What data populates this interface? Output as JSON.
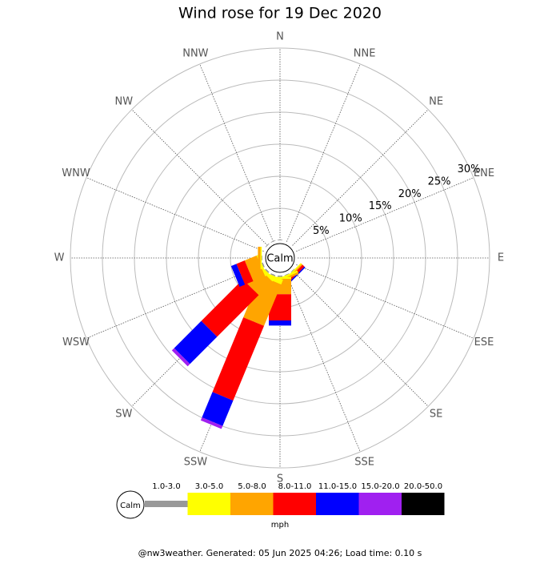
{
  "chart_data": {
    "type": "windrose",
    "title": "Wind rose for 19 Dec 2020",
    "categories": [
      "N",
      "NNE",
      "NE",
      "ENE",
      "E",
      "ESE",
      "SE",
      "SSE",
      "S",
      "SSW",
      "SW",
      "WSW",
      "W",
      "WNW",
      "NW",
      "NNW"
    ],
    "calm_label": "Calm",
    "rlim": [
      0,
      30
    ],
    "rticks": [
      {
        "value": 5,
        "label": "5%"
      },
      {
        "value": 10,
        "label": "10%"
      },
      {
        "value": 15,
        "label": "15%"
      },
      {
        "value": 20,
        "label": "20%"
      },
      {
        "value": 25,
        "label": "25%"
      },
      {
        "value": 30,
        "label": "30%"
      }
    ],
    "series": [
      {
        "name": "1.0-3.0",
        "color": "#999999",
        "values": [
          0.1,
          0,
          0,
          0,
          0,
          0,
          0.1,
          0.1,
          0.2,
          0.2,
          0.2,
          0.2,
          0.1,
          0,
          0.1,
          0.1
        ]
      },
      {
        "name": "3.0-5.0",
        "color": "#ffff00",
        "values": [
          0,
          0,
          0,
          0,
          0,
          0,
          0.2,
          0.3,
          0.3,
          0.8,
          0.5,
          0.3,
          0.2,
          0,
          0,
          0
        ]
      },
      {
        "name": "5.0-8.0",
        "color": "#ffa500",
        "values": [
          0,
          0,
          0,
          0,
          0,
          0,
          0.2,
          0.3,
          2.4,
          7.0,
          3.0,
          2.0,
          0.4,
          0,
          0,
          0
        ]
      },
      {
        "name": "8.0-11.0",
        "color": "#ff0000",
        "values": [
          0,
          0,
          0,
          0,
          0,
          0,
          0.4,
          0,
          4.1,
          12.6,
          9.2,
          1.4,
          0,
          0,
          0,
          0
        ]
      },
      {
        "name": "11.0-15.0",
        "color": "#0000ff",
        "values": [
          0,
          0,
          0,
          0,
          0,
          0,
          0.2,
          0,
          0.8,
          4.3,
          6.0,
          0.9,
          0,
          0,
          0,
          0
        ]
      },
      {
        "name": "15.0-20.0",
        "color": "#a020f0",
        "values": [
          0,
          0,
          0,
          0,
          0,
          0,
          0,
          0,
          0,
          0.5,
          0.5,
          0,
          0,
          0,
          0,
          0
        ]
      },
      {
        "name": "20.0-50.0",
        "color": "#000000",
        "values": [
          0,
          0,
          0,
          0,
          0,
          0,
          0,
          0,
          0,
          0,
          0,
          0,
          0,
          0,
          0,
          0
        ]
      }
    ],
    "unit_label": "mph",
    "footer": "@nw3weather. Generated: 05 Jun 2025 04:26; Load time: 0.10 s"
  }
}
